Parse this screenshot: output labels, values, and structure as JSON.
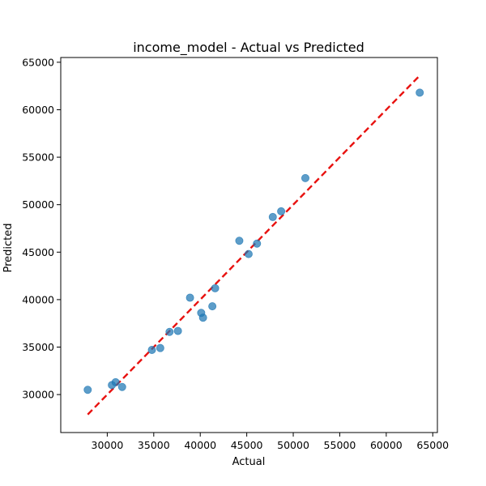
{
  "chart_data": {
    "type": "scatter",
    "title": "income_model - Actual vs Predicted",
    "xlabel": "Actual",
    "ylabel": "Predicted",
    "xlim": [
      25000,
      65500
    ],
    "ylim": [
      26000,
      65500
    ],
    "xticks": [
      30000,
      35000,
      40000,
      45000,
      50000,
      55000,
      60000,
      65000
    ],
    "yticks": [
      30000,
      35000,
      40000,
      45000,
      50000,
      55000,
      60000,
      65000
    ],
    "grid": false,
    "points": [
      {
        "x": 27900,
        "y": 30500
      },
      {
        "x": 30500,
        "y": 31000
      },
      {
        "x": 30900,
        "y": 31300
      },
      {
        "x": 31600,
        "y": 30800
      },
      {
        "x": 34800,
        "y": 34700
      },
      {
        "x": 35700,
        "y": 34900
      },
      {
        "x": 36700,
        "y": 36600
      },
      {
        "x": 37600,
        "y": 36700
      },
      {
        "x": 38900,
        "y": 40200
      },
      {
        "x": 40100,
        "y": 38600
      },
      {
        "x": 40300,
        "y": 38100
      },
      {
        "x": 41300,
        "y": 39300
      },
      {
        "x": 41600,
        "y": 41200
      },
      {
        "x": 44200,
        "y": 46200
      },
      {
        "x": 45200,
        "y": 44800
      },
      {
        "x": 46100,
        "y": 45900
      },
      {
        "x": 47800,
        "y": 48700
      },
      {
        "x": 48700,
        "y": 49300
      },
      {
        "x": 51300,
        "y": 52800
      },
      {
        "x": 63600,
        "y": 61800
      }
    ],
    "reference_line": {
      "from": [
        27900,
        27900
      ],
      "to": [
        63600,
        63600
      ],
      "style": "dashed",
      "color": "#e8110f"
    },
    "point_color": "#1f77b4"
  }
}
